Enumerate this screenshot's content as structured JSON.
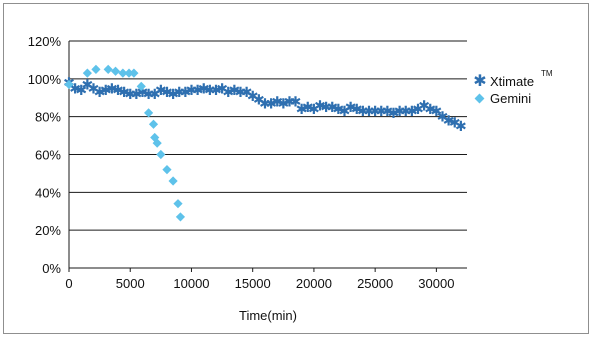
{
  "chart_data": {
    "type": "scatter",
    "title": "",
    "xlabel": "Time(min)",
    "ylabel": "",
    "xlim": [
      0,
      32500
    ],
    "ylim": [
      0,
      120
    ],
    "xticks": [
      "0",
      "5000",
      "10000",
      "15000",
      "20000",
      "25000",
      "30000"
    ],
    "yticks": [
      "0%",
      "20%",
      "40%",
      "60%",
      "80%",
      "100%",
      "120%"
    ],
    "grid": "horizontal",
    "legend_position": "right",
    "series": [
      {
        "name": "Xtimate",
        "name_superscript": "TM",
        "marker": "star",
        "color": "#2e6fb0",
        "x": [
          0,
          500,
          1000,
          1500,
          2000,
          2500,
          3000,
          3500,
          4000,
          4500,
          5000,
          5500,
          6000,
          6500,
          7000,
          7500,
          8000,
          8500,
          9000,
          9500,
          10000,
          10500,
          11000,
          11500,
          12000,
          12500,
          13000,
          13500,
          14000,
          14500,
          15000,
          15500,
          16000,
          16500,
          17000,
          17500,
          18000,
          18500,
          19000,
          19500,
          20000,
          20500,
          21000,
          21500,
          22000,
          22500,
          23000,
          23500,
          24000,
          24500,
          25000,
          25500,
          26000,
          26500,
          27000,
          27500,
          28000,
          28500,
          29000,
          29500,
          30000,
          30500,
          31000,
          31500,
          32000
        ],
        "y": [
          98,
          95,
          94,
          97,
          95,
          93,
          94,
          95,
          94,
          93,
          92,
          92,
          93,
          92,
          92,
          94,
          93,
          92,
          93,
          93,
          94,
          94,
          95,
          94,
          94,
          95,
          93,
          94,
          93,
          93,
          91,
          89,
          87,
          87,
          88,
          87,
          88,
          88,
          84,
          85,
          84,
          86,
          85,
          85,
          84,
          83,
          85,
          84,
          83,
          83,
          83,
          83,
          83,
          82,
          83,
          83,
          83,
          84,
          86,
          84,
          83,
          80,
          78,
          77,
          75
        ]
      },
      {
        "name": "Gemini",
        "marker": "diamond",
        "color": "#5ec2ea",
        "x": [
          0,
          1500,
          2200,
          3200,
          3800,
          4400,
          4900,
          5300,
          5900,
          6500,
          6900,
          7000,
          7200,
          7500,
          8000,
          8500,
          8900
        ],
        "y": [
          97,
          103,
          105,
          105,
          104,
          103,
          103,
          103,
          96,
          82,
          76,
          69,
          66,
          60,
          52,
          46,
          34
        ]
      }
    ],
    "extra_points": [
      {
        "series": "Gemini",
        "x": 9100,
        "y": 27
      }
    ]
  }
}
